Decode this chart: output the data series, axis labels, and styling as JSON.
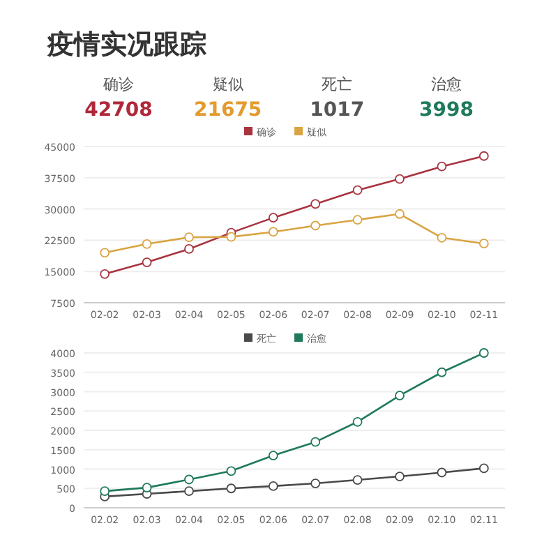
{
  "chart_data": [
    {
      "type": "other",
      "title": "疫情实况跟踪",
      "categories": [
        "确诊",
        "疑似",
        "死亡",
        "治愈"
      ],
      "values": [
        42708,
        21675,
        1017,
        3998
      ],
      "colors": [
        "#b0283a",
        "#e39a2e",
        "#555555",
        "#1f7a5a"
      ],
      "data_labels": true
    },
    {
      "type": "line",
      "categories": [
        "02-02",
        "02-03",
        "02-04",
        "02-05",
        "02-06",
        "02-07",
        "02-08",
        "02-09",
        "02-10",
        "02-11"
      ],
      "ylim": [
        7500,
        45000
      ],
      "yticks": [
        7500,
        15000,
        22500,
        30000,
        37500,
        45000
      ],
      "grid": "y",
      "legend": "top",
      "marker": "circle",
      "series": [
        {
          "name": "确诊",
          "color": "#a8343f",
          "values": [
            14400,
            17200,
            20400,
            24300,
            27900,
            31200,
            34500,
            37200,
            40200,
            42700
          ]
        },
        {
          "name": "疑似",
          "color": "#d9a441",
          "values": [
            19500,
            21600,
            23200,
            23300,
            24500,
            26000,
            27400,
            28800,
            23100,
            21700
          ]
        }
      ]
    },
    {
      "type": "line",
      "categories": [
        "02.02",
        "02.03",
        "02.04",
        "02.05",
        "02.06",
        "02.07",
        "02.08",
        "02.09",
        "02.10",
        "02.11"
      ],
      "ylim": [
        0,
        4000
      ],
      "yticks": [
        0,
        500,
        1000,
        1500,
        2000,
        2500,
        3000,
        3500,
        4000
      ],
      "grid": "y",
      "legend": "top",
      "marker": "circle",
      "series": [
        {
          "name": "死亡",
          "color": "#4a4a4a",
          "values": [
            290,
            360,
            430,
            500,
            560,
            630,
            720,
            810,
            910,
            1020
          ]
        },
        {
          "name": "治愈",
          "color": "#1f7a5a",
          "values": [
            430,
            520,
            730,
            950,
            1350,
            1700,
            2220,
            2900,
            3500,
            4000
          ]
        }
      ]
    }
  ]
}
